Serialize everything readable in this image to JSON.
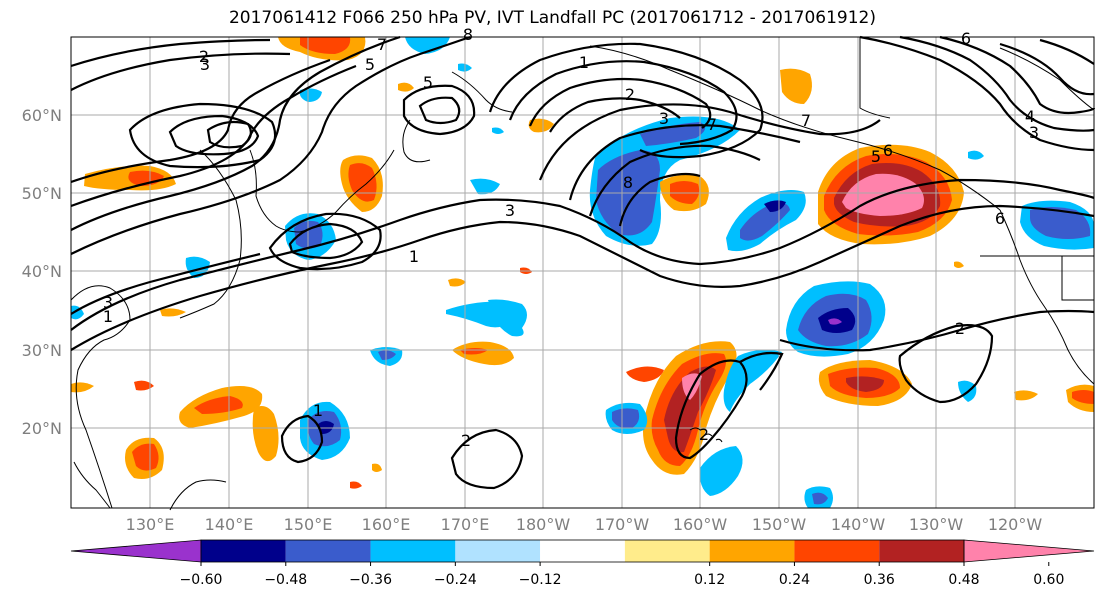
{
  "title": "2017061412 F066 250 hPa PV, IVT Landfall PC (2017061712 - 2017061912)",
  "lat_labels": [
    "60°N",
    "50°N",
    "40°N",
    "30°N",
    "20°N"
  ],
  "lon_labels": [
    "130°E",
    "140°E",
    "150°E",
    "160°E",
    "170°E",
    "180°W",
    "170°W",
    "160°W",
    "150°W",
    "140°W",
    "130°W",
    "120°W"
  ],
  "colorbar": {
    "levels": [
      "−0.60",
      "−0.48",
      "−0.36",
      "−0.24",
      "−0.12",
      "0.12",
      "0.24",
      "0.36",
      "0.48",
      "0.60"
    ],
    "colors": [
      "#9a32cd",
      "#00008b",
      "#3a5ccc",
      "#00bfff",
      "#b0e2ff",
      "#ffffff",
      "#ffec8b",
      "#ffa500",
      "#ff4500",
      "#b22222",
      "#ff82ab"
    ]
  },
  "contour_labels": [
    "2",
    "3",
    "5",
    "7",
    "8",
    "1",
    "2",
    "3",
    "7",
    "8",
    "6",
    "5",
    "6",
    "1",
    "2",
    "3",
    "1",
    "1",
    "2",
    "3",
    "2",
    "7",
    "6",
    "4",
    "3",
    "5"
  ]
}
